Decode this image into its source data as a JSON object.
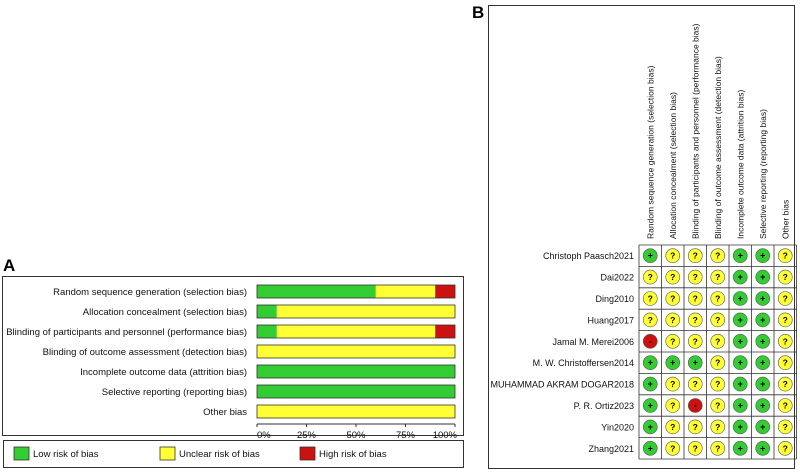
{
  "panel_a_letter": "A",
  "panel_b_letter": "B",
  "colors": {
    "low": "#33cc33",
    "unclear": "#ffff33",
    "high": "#cc1111",
    "border": "#333333"
  },
  "chart_data": [
    {
      "type": "bar",
      "orientation": "horizontal-stacked-percent",
      "categories": [
        "Random sequence generation (selection bias)",
        "Allocation concealment (selection bias)",
        "Blinding of participants and personnel (performance bias)",
        "Blinding of outcome assessment (detection bias)",
        "Incomplete outcome data (attrition bias)",
        "Selective reporting (reporting bias)",
        "Other bias"
      ],
      "series": [
        {
          "name": "Low risk of bias",
          "key": "low",
          "values": [
            60,
            10,
            10,
            0,
            100,
            100,
            0
          ]
        },
        {
          "name": "Unclear risk of bias",
          "key": "unclear",
          "values": [
            30,
            90,
            80,
            100,
            0,
            0,
            100
          ]
        },
        {
          "name": "High risk of bias",
          "key": "high",
          "values": [
            10,
            0,
            10,
            0,
            0,
            0,
            0
          ]
        }
      ],
      "xticks": [
        "0%",
        "25%",
        "50%",
        "75%",
        "100%"
      ],
      "xlim": [
        0,
        100
      ],
      "legend": [
        "Low risk of bias",
        "Unclear risk of bias",
        "High risk of bias"
      ]
    },
    {
      "type": "table",
      "columns": [
        "Random sequence generation (selection bias)",
        "Allocation concealment (selection bias)",
        "Blinding of participants and personnel (performance bias)",
        "Blinding of outcome assessment (detection bias)",
        "Incomplete outcome data (attrition bias)",
        "Selective reporting (reporting bias)",
        "Other bias"
      ],
      "rows": [
        {
          "study": "Christoph Paasch2021",
          "ratings": [
            "+",
            "?",
            "?",
            "?",
            "+",
            "+",
            "?"
          ]
        },
        {
          "study": "Dai2022",
          "ratings": [
            "?",
            "?",
            "?",
            "?",
            "+",
            "+",
            "?"
          ]
        },
        {
          "study": "Ding2010",
          "ratings": [
            "?",
            "?",
            "?",
            "?",
            "+",
            "+",
            "?"
          ]
        },
        {
          "study": "Huang2017",
          "ratings": [
            "?",
            "?",
            "?",
            "?",
            "+",
            "+",
            "?"
          ]
        },
        {
          "study": "Jamal M. Merei2006",
          "ratings": [
            "-",
            "?",
            "?",
            "?",
            "+",
            "+",
            "?"
          ]
        },
        {
          "study": "M. W. Christoffersen2014",
          "ratings": [
            "+",
            "+",
            "+",
            "?",
            "+",
            "+",
            "?"
          ]
        },
        {
          "study": "MUHAMMAD AKRAM DOGAR2018",
          "ratings": [
            "+",
            "?",
            "?",
            "?",
            "+",
            "+",
            "?"
          ]
        },
        {
          "study": "P. R. Ortiz2023",
          "ratings": [
            "+",
            "?",
            "-",
            "?",
            "+",
            "+",
            "?"
          ]
        },
        {
          "study": "Yin2020",
          "ratings": [
            "+",
            "?",
            "?",
            "?",
            "+",
            "+",
            "?"
          ]
        },
        {
          "study": "Zhang2021",
          "ratings": [
            "+",
            "?",
            "?",
            "?",
            "+",
            "+",
            "?"
          ]
        }
      ]
    }
  ]
}
